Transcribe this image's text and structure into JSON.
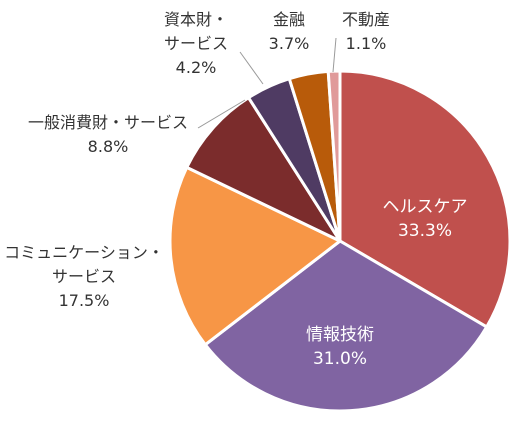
{
  "chart_data": {
    "type": "pie",
    "title": "",
    "slices": [
      {
        "label": "ヘルスケア",
        "value": 33.3,
        "value_label": "33.3%",
        "color": "#c0504d"
      },
      {
        "label": "情報技術",
        "value": 31.0,
        "value_label": "31.0%",
        "color": "#8064a2"
      },
      {
        "label": "コミュニケーション・サービス",
        "value": 17.5,
        "value_label": "17.5%",
        "color": "#f79646"
      },
      {
        "label": "一般消費財・サービス",
        "value": 8.8,
        "value_label": "8.8%",
        "color": "#7b2c2c"
      },
      {
        "label": "資本財・サービス",
        "value": 4.2,
        "value_label": "4.2%",
        "color": "#4f3b63"
      },
      {
        "label": "金融",
        "value": 3.7,
        "value_label": "3.7%",
        "color": "#b85b0a"
      },
      {
        "label": "不動産",
        "value": 1.1,
        "value_label": "1.1%",
        "color": "#e09a9a"
      }
    ],
    "start_angle_deg": 0,
    "direction": "clockwise",
    "legend": "none"
  }
}
